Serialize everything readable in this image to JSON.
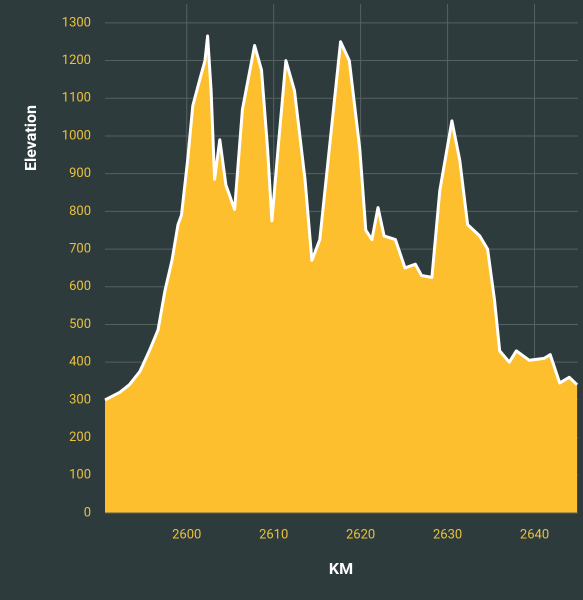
{
  "chart_data": {
    "type": "area",
    "x_label": "KM",
    "y_label": "Elevation",
    "x": [
      2590.6,
      2592.3,
      2593.4,
      2594.6,
      2595.7,
      2596.7,
      2597.5,
      2598.3,
      2599.0,
      2599.4,
      2600.1,
      2600.7,
      2601.5,
      2602.1,
      2602.4,
      2602.8,
      2603.2,
      2603.8,
      2604.5,
      2605.5,
      2606.4,
      2607.8,
      2608.6,
      2609.3,
      2609.8,
      2610.5,
      2611.4,
      2612.4,
      2613.6,
      2614.4,
      2615.3,
      2616.4,
      2617.7,
      2618.7,
      2619.9,
      2620.6,
      2621.3,
      2622.0,
      2622.7,
      2624.0,
      2625.1,
      2626.3,
      2627.0,
      2628.2,
      2629.1,
      2630.5,
      2631.4,
      2632.3,
      2633.7,
      2634.6,
      2635.4,
      2636.0,
      2637.1,
      2637.9,
      2639.4,
      2641.1,
      2641.8,
      2642.9,
      2644.0,
      2644.9
    ],
    "series": [
      {
        "name": "Elevation",
        "color": "#fdbf2d",
        "line_color": "#ffffff",
        "values": [
          300,
          320,
          340,
          375,
          430,
          485,
          590,
          670,
          765,
          790,
          935,
          1080,
          1150,
          1200,
          1265,
          1120,
          885,
          990,
          870,
          805,
          1070,
          1240,
          1175,
          965,
          775,
          965,
          1200,
          1120,
          885,
          670,
          725,
          965,
          1250,
          1200,
          965,
          750,
          725,
          810,
          735,
          725,
          650,
          660,
          630,
          625,
          855,
          1040,
          935,
          765,
          735,
          700,
          565,
          430,
          400,
          430,
          405,
          410,
          420,
          345,
          360,
          340
        ]
      }
    ],
    "xlim": [
      2590.6,
      2645
    ],
    "ylim": [
      0,
      1350
    ],
    "xticks": [
      2600,
      2610,
      2620,
      2630,
      2640
    ],
    "yticks": [
      0,
      100,
      200,
      300,
      400,
      500,
      600,
      700,
      800,
      900,
      1000,
      1100,
      1200,
      1300
    ],
    "grid": true
  }
}
